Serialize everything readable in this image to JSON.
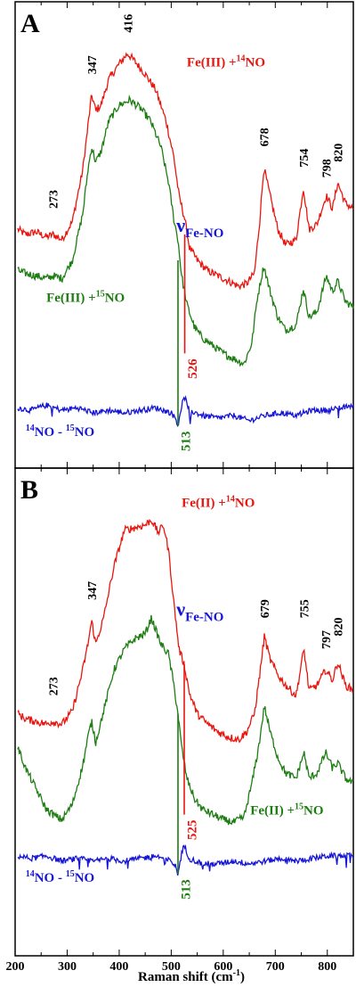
{
  "colors": {
    "fe14": "#e8160f",
    "fe15": "#1e7d12",
    "diff": "#1515d6",
    "axis": "#000000"
  },
  "xlabel": "Raman shift (cm",
  "xlabel_sup": "-1",
  "xlabel_end": ")",
  "x_ticks": [
    "200",
    "300",
    "400",
    "500",
    "600",
    "700",
    "800"
  ],
  "chart_data": [
    {
      "type": "line",
      "panel_label": "A",
      "xlim": [
        200,
        850
      ],
      "series": [
        {
          "color": "fe14",
          "x": [
            205,
            220,
            240,
            260,
            273,
            290,
            310,
            330,
            340,
            347,
            355,
            365,
            380,
            400,
            416,
            430,
            450,
            470,
            490,
            505,
            515,
            526,
            535,
            550,
            570,
            590,
            610,
            630,
            645,
            660,
            670,
            678,
            690,
            705,
            720,
            740,
            754,
            765,
            780,
            798,
            810,
            820,
            835,
            850
          ],
          "y": [
            0.32,
            0.3,
            0.31,
            0.29,
            0.3,
            0.28,
            0.35,
            0.55,
            0.72,
            0.84,
            0.78,
            0.8,
            0.9,
            0.96,
            1.0,
            0.97,
            0.92,
            0.86,
            0.74,
            0.6,
            0.45,
            0.36,
            0.25,
            0.2,
            0.16,
            0.14,
            0.12,
            0.1,
            0.11,
            0.15,
            0.35,
            0.56,
            0.45,
            0.32,
            0.26,
            0.28,
            0.48,
            0.32,
            0.34,
            0.45,
            0.4,
            0.5,
            0.42,
            0.4
          ]
        },
        {
          "color": "fe15",
          "x": [
            205,
            220,
            240,
            260,
            273,
            290,
            310,
            330,
            340,
            347,
            355,
            365,
            380,
            400,
            420,
            440,
            460,
            480,
            495,
            505,
            513,
            520,
            530,
            545,
            560,
            580,
            600,
            620,
            640,
            655,
            665,
            678,
            690,
            705,
            720,
            740,
            754,
            765,
            780,
            798,
            810,
            820,
            835,
            850
          ],
          "y": [
            0.16,
            0.15,
            0.14,
            0.13,
            0.14,
            0.13,
            0.2,
            0.38,
            0.55,
            0.64,
            0.58,
            0.62,
            0.74,
            0.8,
            0.82,
            0.79,
            0.74,
            0.64,
            0.5,
            0.36,
            0.28,
            0.14,
            0.03,
            -0.06,
            -0.1,
            -0.13,
            -0.16,
            -0.18,
            -0.2,
            -0.12,
            0.05,
            0.18,
            0.08,
            -0.02,
            -0.07,
            -0.05,
            0.09,
            -0.02,
            0.0,
            0.14,
            0.08,
            0.12,
            0.04,
            0.02
          ]
        },
        {
          "color": "diff",
          "x": [
            205,
            230,
            260,
            290,
            320,
            350,
            380,
            410,
            440,
            470,
            500,
            508,
            513,
            520,
            526,
            535,
            560,
            590,
            620,
            650,
            680,
            710,
            740,
            770,
            800,
            830,
            850
          ],
          "y": [
            -0.37,
            -0.38,
            -0.36,
            -0.38,
            -0.37,
            -0.39,
            -0.38,
            -0.39,
            -0.38,
            -0.37,
            -0.39,
            -0.41,
            -0.44,
            -0.36,
            -0.33,
            -0.38,
            -0.4,
            -0.41,
            -0.4,
            -0.42,
            -0.4,
            -0.39,
            -0.4,
            -0.38,
            -0.38,
            -0.37,
            -0.36
          ]
        }
      ],
      "peaks": [
        {
          "label": "273",
          "x": 273,
          "y": 0.4
        },
        {
          "label": "347",
          "x": 347,
          "y": 0.92
        },
        {
          "label": "416",
          "x": 416,
          "y": 1.08
        },
        {
          "label": "678",
          "x": 678,
          "y": 0.64
        },
        {
          "label": "754",
          "x": 754,
          "y": 0.56
        },
        {
          "label": "798",
          "x": 798,
          "y": 0.52
        },
        {
          "label": "820",
          "x": 820,
          "y": 0.58
        }
      ],
      "series_labels": [
        {
          "text": "Fe(III) +",
          "sup": "14",
          "tail": "NO",
          "color": "fe14",
          "x": 530,
          "y": 0.95
        },
        {
          "text": "Fe(III) +",
          "sup": "15",
          "tail": "NO",
          "color": "fe15",
          "x": 260,
          "y": 0.04
        },
        {
          "text": "",
          "sup": "14",
          "tail": "NO - ",
          "sup2": "15",
          "tail2": "NO",
          "color": "diff",
          "x": 220,
          "y": -0.48
        }
      ],
      "nu_label": {
        "symbol": "ν",
        "sub": "Fe-NO",
        "color": "diff",
        "x": 510,
        "y": 0.31
      },
      "markers": [
        {
          "label": "526",
          "x": 526,
          "color": "fe14",
          "from": 0.3,
          "to": -0.16
        },
        {
          "label": "513",
          "x": 513,
          "color": "fe15",
          "from": 0.2,
          "to": -0.44
        }
      ]
    },
    {
      "type": "line",
      "panel_label": "B",
      "xlim": [
        200,
        850
      ],
      "series": [
        {
          "color": "fe14",
          "x": [
            205,
            220,
            240,
            260,
            273,
            290,
            310,
            330,
            340,
            347,
            355,
            370,
            390,
            410,
            430,
            450,
            462,
            475,
            485,
            495,
            505,
            515,
            525,
            535,
            550,
            570,
            590,
            610,
            630,
            645,
            660,
            670,
            679,
            690,
            705,
            720,
            740,
            755,
            765,
            780,
            797,
            810,
            820,
            835,
            850
          ],
          "y": [
            0.25,
            0.23,
            0.22,
            0.21,
            0.22,
            0.21,
            0.26,
            0.42,
            0.52,
            0.61,
            0.52,
            0.62,
            0.82,
            0.96,
            0.97,
            0.98,
            1.0,
            0.95,
            0.98,
            0.88,
            0.68,
            0.5,
            0.44,
            0.33,
            0.25,
            0.21,
            0.18,
            0.16,
            0.15,
            0.18,
            0.25,
            0.4,
            0.55,
            0.46,
            0.4,
            0.36,
            0.32,
            0.5,
            0.34,
            0.36,
            0.42,
            0.38,
            0.45,
            0.36,
            0.34
          ]
        },
        {
          "color": "fe15",
          "x": [
            205,
            220,
            240,
            260,
            280,
            290,
            310,
            330,
            340,
            347,
            355,
            370,
            390,
            410,
            430,
            450,
            462,
            480,
            495,
            505,
            513,
            520,
            530,
            545,
            560,
            580,
            600,
            620,
            640,
            655,
            668,
            679,
            690,
            705,
            720,
            740,
            755,
            765,
            780,
            797,
            810,
            820,
            835,
            850
          ],
          "y": [
            0.12,
            0.04,
            -0.04,
            -0.12,
            -0.15,
            -0.16,
            -0.1,
            0.05,
            0.16,
            0.22,
            0.14,
            0.26,
            0.42,
            0.5,
            0.54,
            0.56,
            0.62,
            0.52,
            0.48,
            0.36,
            0.25,
            0.12,
            0.0,
            -0.08,
            -0.12,
            -0.14,
            -0.16,
            -0.17,
            -0.15,
            -0.02,
            0.12,
            0.28,
            0.18,
            0.08,
            0.02,
            0.0,
            0.1,
            0.0,
            0.02,
            0.1,
            0.04,
            0.06,
            0.0,
            -0.02
          ]
        },
        {
          "color": "diff",
          "x": [
            205,
            230,
            260,
            290,
            320,
            350,
            380,
            410,
            440,
            470,
            500,
            508,
            513,
            520,
            525,
            535,
            560,
            590,
            620,
            650,
            680,
            710,
            740,
            770,
            800,
            830,
            850
          ],
          "y": [
            -0.3,
            -0.31,
            -0.3,
            -0.32,
            -0.31,
            -0.32,
            -0.31,
            -0.32,
            -0.31,
            -0.3,
            -0.32,
            -0.34,
            -0.37,
            -0.29,
            -0.26,
            -0.31,
            -0.33,
            -0.33,
            -0.32,
            -0.33,
            -0.32,
            -0.31,
            -0.32,
            -0.31,
            -0.3,
            -0.3,
            -0.3
          ]
        }
      ],
      "peaks": [
        {
          "label": "273",
          "x": 273,
          "y": 0.32
        },
        {
          "label": "347",
          "x": 347,
          "y": 0.69
        },
        {
          "label": "679",
          "x": 679,
          "y": 0.62
        },
        {
          "label": "755",
          "x": 755,
          "y": 0.62
        },
        {
          "label": "797",
          "x": 797,
          "y": 0.5
        },
        {
          "label": "820",
          "x": 820,
          "y": 0.55
        }
      ],
      "series_labels": [
        {
          "text": "Fe(II) +",
          "sup": "14",
          "tail": "NO",
          "color": "fe14",
          "x": 520,
          "y": 1.05
        },
        {
          "text": "Fe(II) +",
          "sup": "15",
          "tail": "NO",
          "color": "fe15",
          "x": 652,
          "y": -0.14
        },
        {
          "text": "",
          "sup": "14",
          "tail": "NO - ",
          "sup2": "15",
          "tail2": "NO",
          "color": "diff",
          "x": 220,
          "y": -0.4
        }
      ],
      "nu_label": {
        "symbol": "ν",
        "sub": "Fe-NO",
        "color": "diff",
        "x": 510,
        "y": 0.63
      },
      "markers": [
        {
          "label": "525",
          "x": 525,
          "color": "fe14",
          "from": 0.44,
          "to": -0.14
        },
        {
          "label": "513",
          "x": 513,
          "color": "fe15",
          "from": 0.25,
          "to": -0.37
        }
      ]
    }
  ]
}
